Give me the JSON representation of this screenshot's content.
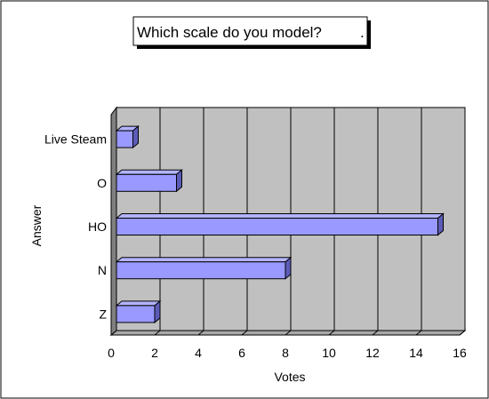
{
  "chart_data": {
    "type": "bar",
    "orientation": "horizontal",
    "style": "3d",
    "title": "Which scale do you model?",
    "title_suffix": ".",
    "xlabel": "Votes",
    "ylabel": "Answer",
    "categories": [
      "Live Steam",
      "O",
      "HO",
      "N",
      "Z"
    ],
    "values": [
      1,
      3,
      15,
      8,
      2
    ],
    "xlim": [
      0,
      16
    ],
    "x_ticks": [
      "0",
      "2",
      "4",
      "6",
      "8",
      "10",
      "12",
      "14",
      "16"
    ],
    "grid": true,
    "legend": "none",
    "colors": {
      "bar_face": "#9999ff",
      "bar_top": "#b3b3ff",
      "bar_side": "#5c5cb8",
      "plot_back": "#c0c0c0",
      "plot_left_wall": "#808080",
      "plot_floor": "#a8a8a8"
    }
  }
}
